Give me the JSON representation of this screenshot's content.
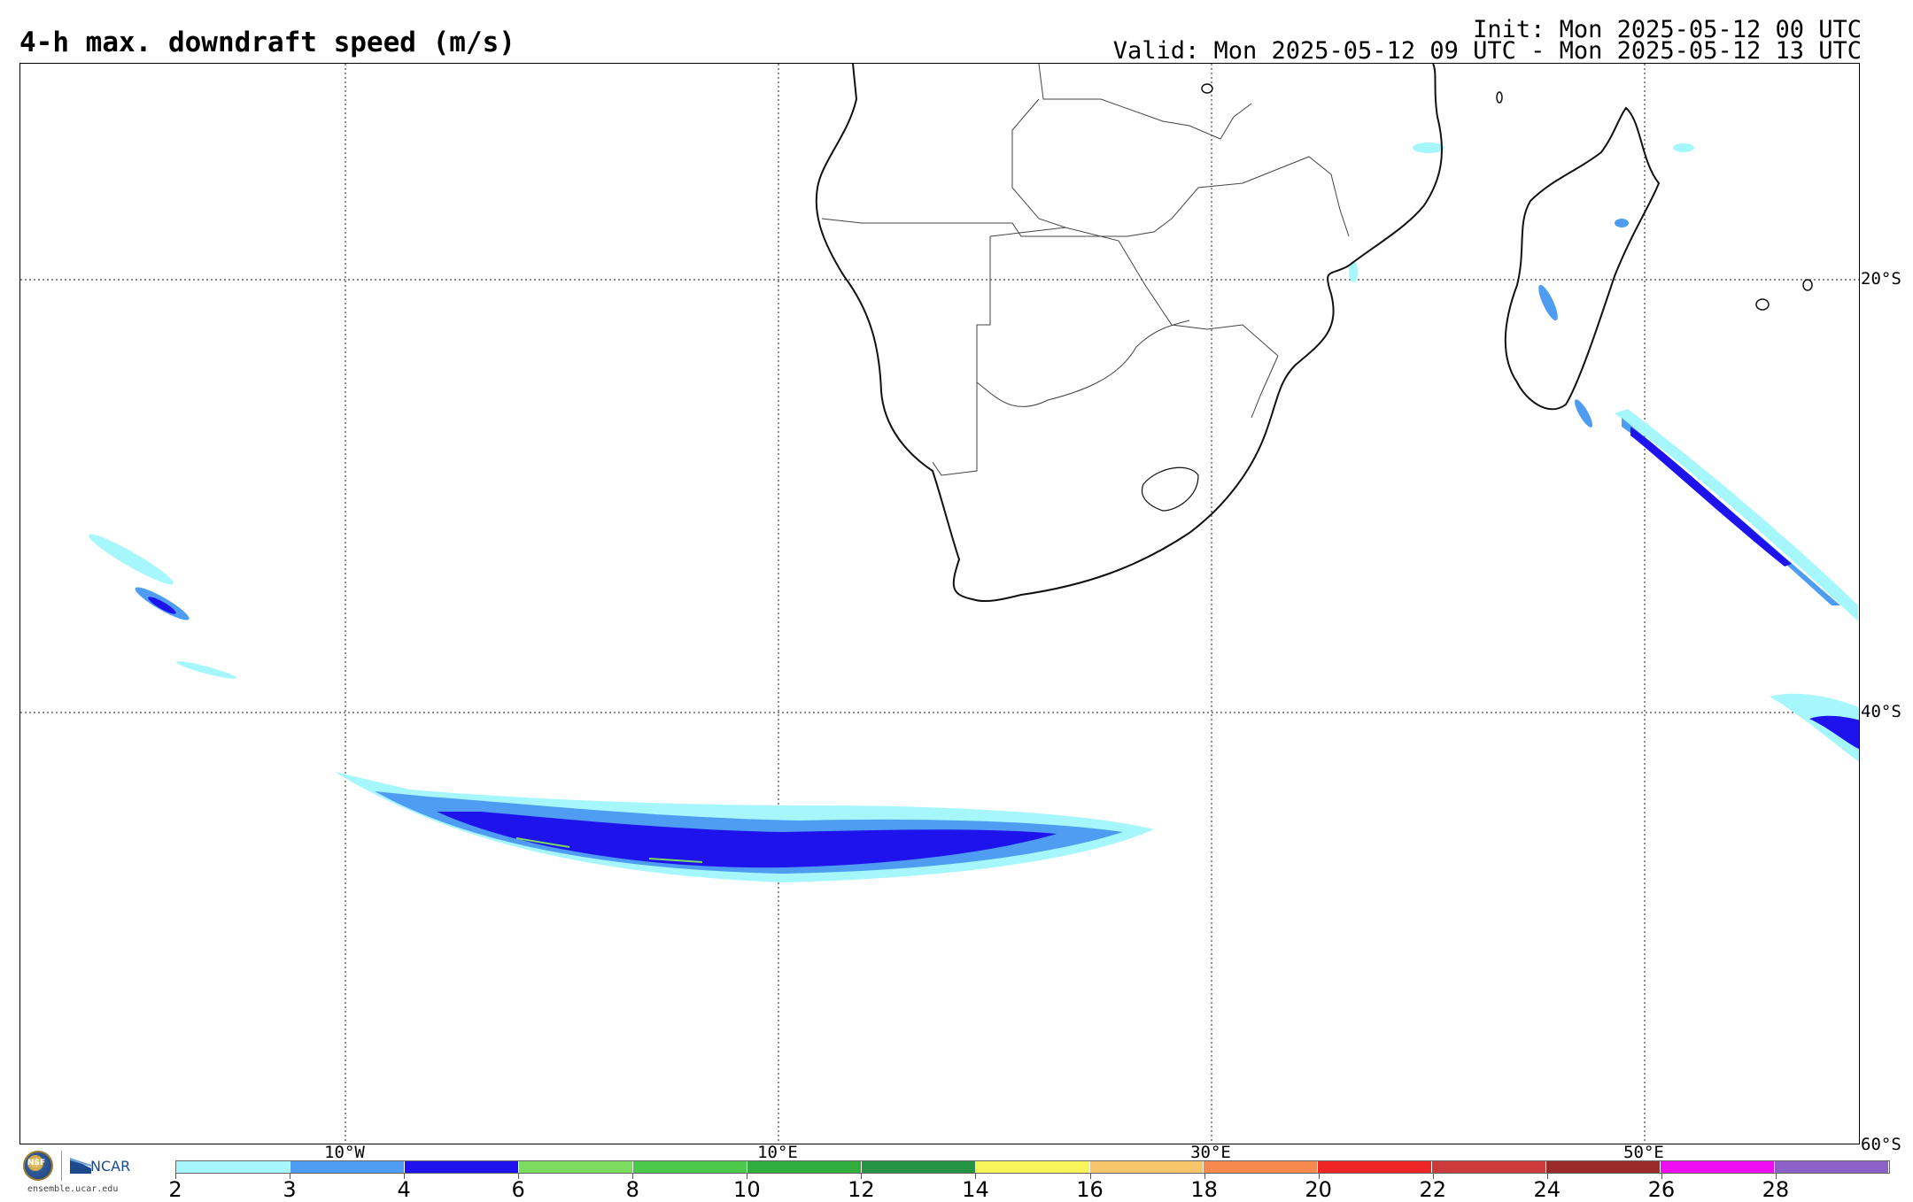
{
  "header": {
    "title": "4-h max. downdraft speed (m/s)",
    "init": "Init: Mon 2025-05-12 00 UTC",
    "valid": "Valid: Mon 2025-05-12 09 UTC - Mon 2025-05-12 13 UTC"
  },
  "map": {
    "lat_labels": [
      "20°S",
      "40°S",
      "60°S"
    ],
    "lon_labels": [
      "10°W",
      "10°E",
      "30°E",
      "50°E"
    ],
    "gridlines": "dotted"
  },
  "colorbar": {
    "ticks": [
      "2",
      "3",
      "4",
      "6",
      "8",
      "10",
      "12",
      "14",
      "16",
      "18",
      "20",
      "22",
      "24",
      "26",
      "28"
    ],
    "colors": [
      "#a6f7fb",
      "#4e9df2",
      "#1e13ec",
      "#7bdc5d",
      "#4cc94a",
      "#2fae3e",
      "#249343",
      "#f7f55a",
      "#f7c56a",
      "#f7894e",
      "#ef2424",
      "#cc3a3a",
      "#9a2a2a",
      "#ef0ef2",
      "#8c62c9"
    ]
  },
  "logos": {
    "nsf": "NSF",
    "ncar": "NCAR",
    "url": "ensemble.ucar.edu"
  }
}
